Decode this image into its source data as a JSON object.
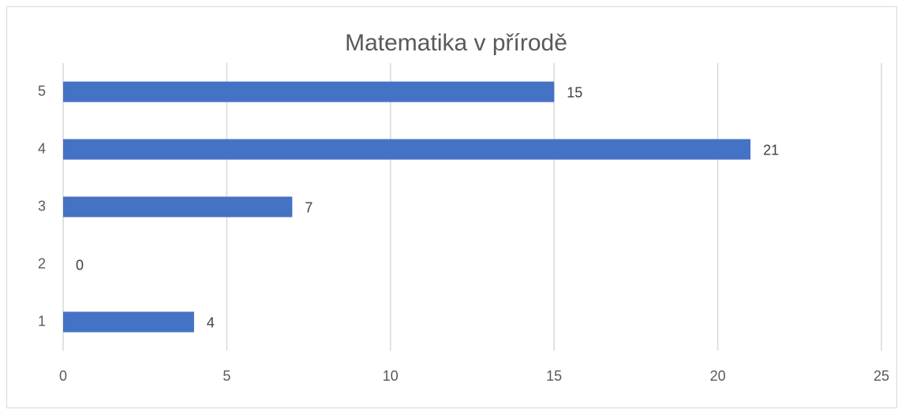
{
  "chart_data": {
    "type": "bar",
    "orientation": "horizontal",
    "title": "Matematika v přírodě",
    "categories": [
      "1",
      "2",
      "3",
      "4",
      "5"
    ],
    "values": [
      4,
      0,
      7,
      21,
      15
    ],
    "color": "#4472c4",
    "xlim": [
      0,
      25
    ],
    "xticks": [
      0,
      5,
      10,
      15,
      20,
      25
    ],
    "grid": true
  }
}
